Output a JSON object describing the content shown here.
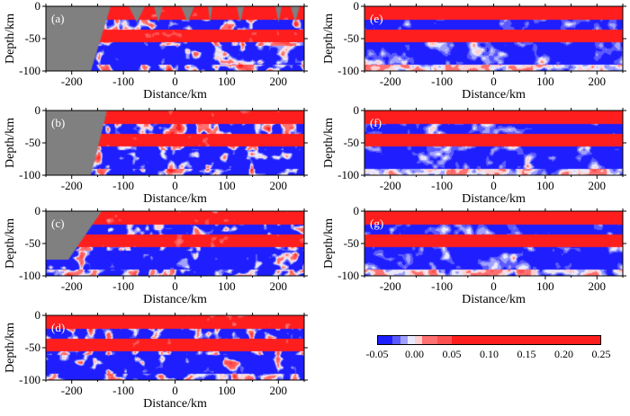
{
  "chart_data": [
    {
      "type": "heatmap",
      "panel_label": "(a)",
      "xlabel": "Distance/km",
      "ylabel": "Depth/km",
      "xlim": [
        -250,
        250
      ],
      "ylim": [
        -100,
        0
      ],
      "xticks": [
        -200,
        -100,
        0,
        100,
        200
      ],
      "yticks": [
        0,
        -50,
        -100
      ],
      "masked_region": "gray, left of ~-150 km and triangular gaps at top"
    },
    {
      "type": "heatmap",
      "panel_label": "(b)",
      "xlabel": "Distance/km",
      "ylabel": "Depth/km",
      "xlim": [
        -250,
        250
      ],
      "ylim": [
        -100,
        0
      ],
      "xticks": [
        -200,
        -100,
        0,
        100,
        200
      ],
      "yticks": [
        0,
        -50,
        -100
      ],
      "masked_region": "gray, left of ~-140 km"
    },
    {
      "type": "heatmap",
      "panel_label": "(c)",
      "xlabel": "Distance/km",
      "ylabel": "Depth/km",
      "xlim": [
        -250,
        250
      ],
      "ylim": [
        -100,
        0
      ],
      "xticks": [
        -200,
        -100,
        0,
        100,
        200
      ],
      "yticks": [
        0,
        -50,
        -100
      ],
      "masked_region": "gray, upper left corner"
    },
    {
      "type": "heatmap",
      "panel_label": "(d)",
      "xlabel": "Distance/km",
      "ylabel": "Depth/km",
      "xlim": [
        -250,
        250
      ],
      "ylim": [
        -100,
        0
      ],
      "xticks": [
        -200,
        -100,
        0,
        100,
        200
      ],
      "yticks": [
        0,
        -50,
        -100
      ]
    },
    {
      "type": "heatmap",
      "panel_label": "(e)",
      "xlabel": "Distance/km",
      "ylabel": "Depth/km",
      "xlim": [
        -250,
        250
      ],
      "ylim": [
        -100,
        0
      ],
      "xticks": [
        -200,
        -100,
        0,
        100,
        200
      ],
      "yticks": [
        0,
        -50,
        -100
      ]
    },
    {
      "type": "heatmap",
      "panel_label": "(f)",
      "xlabel": "Distance/km",
      "ylabel": "Depth/km",
      "xlim": [
        -250,
        250
      ],
      "ylim": [
        -100,
        0
      ],
      "xticks": [
        -200,
        -100,
        0,
        100,
        200
      ],
      "yticks": [
        0,
        -50,
        -100
      ]
    },
    {
      "type": "heatmap",
      "panel_label": "(g)",
      "xlabel": "Distance/km",
      "ylabel": "Depth/km",
      "xlim": [
        -250,
        250
      ],
      "ylim": [
        -100,
        0
      ],
      "xticks": [
        -200,
        -100,
        0,
        100,
        200
      ],
      "yticks": [
        0,
        -50,
        -100
      ]
    }
  ],
  "colorbar": {
    "ticks": [
      "-0.05",
      "0.00",
      "0.05",
      "0.10",
      "0.15",
      "0.20",
      "0.25"
    ],
    "range": [
      -0.05,
      0.25
    ],
    "colors": [
      {
        "from": -0.05,
        "to": -0.03,
        "color": "#1e1eff"
      },
      {
        "from": -0.03,
        "to": -0.02,
        "color": "#5a5aff"
      },
      {
        "from": -0.02,
        "to": -0.01,
        "color": "#a0a0ff"
      },
      {
        "from": -0.01,
        "to": 0.0,
        "color": "#e8e8ff"
      },
      {
        "from": 0.0,
        "to": 0.01,
        "color": "#ffd0d0"
      },
      {
        "from": 0.01,
        "to": 0.03,
        "color": "#ff7070"
      },
      {
        "from": 0.03,
        "to": 0.05,
        "color": "#ff5050"
      },
      {
        "from": 0.05,
        "to": 0.25,
        "color": "#ff1e1e"
      }
    ]
  },
  "colors": {
    "mask": "#808080",
    "positive": "#ff1e1e",
    "negative": "#1e1eff"
  }
}
